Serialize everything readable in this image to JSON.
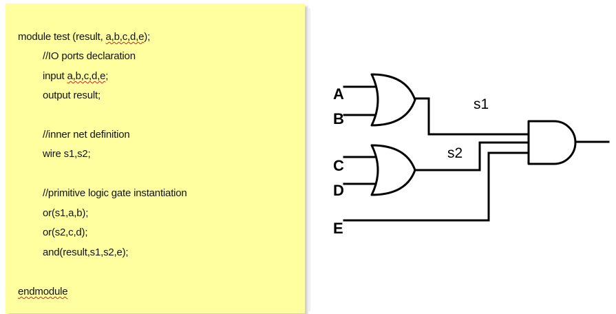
{
  "code": {
    "lines": [
      {
        "parts": [
          {
            "text": "module test (result, "
          },
          {
            "text": "a,b,c,d,e",
            "squiggle": true
          },
          {
            "text": ");"
          }
        ]
      },
      {
        "parts": [
          {
            "text": "//IO ports declaration"
          }
        ]
      },
      {
        "parts": [
          {
            "text": "input "
          },
          {
            "text": "a,b,c,d,e",
            "squiggle": true
          },
          {
            "text": ";"
          }
        ]
      },
      {
        "parts": [
          {
            "text": "output result;"
          }
        ]
      },
      {
        "parts": [
          {
            "text": "//inner net definition"
          }
        ]
      },
      {
        "parts": [
          {
            "text": "wire s1,s2;"
          }
        ]
      },
      {
        "parts": [
          {
            "text": "//primitive logic gate instantiation"
          }
        ]
      },
      {
        "parts": [
          {
            "text": "or(s1,a,b);"
          }
        ]
      },
      {
        "parts": [
          {
            "text": "or(s2,c,d);"
          }
        ]
      },
      {
        "parts": [
          {
            "text": "and(result,s1,s2,e);"
          }
        ]
      },
      {
        "parts": [
          {
            "text": "endmodule",
            "squiggle": true
          }
        ]
      }
    ]
  },
  "circuit": {
    "inputs": {
      "a": "A",
      "b": "B",
      "c": "C",
      "d": "D",
      "e": "E"
    },
    "nets": {
      "s1": "s1",
      "s2": "s2"
    },
    "gates": [
      "or-gate",
      "or-gate",
      "and-gate"
    ]
  },
  "colors": {
    "code_background": "#ffffa0",
    "squiggle": "#d02020",
    "ink": "#000000"
  }
}
